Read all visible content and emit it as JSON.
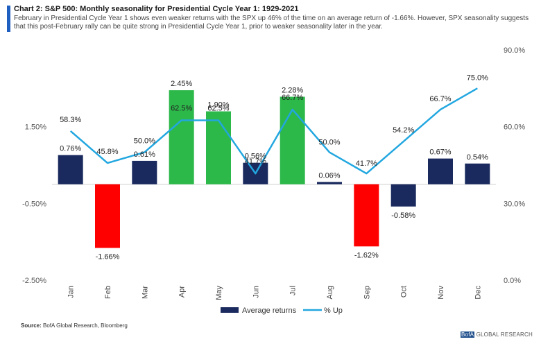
{
  "header": {
    "title": "Chart 2: S&P 500: Monthly seasonality for Presidential Cycle Year 1: 1929-2021",
    "subtitle": "February in Presidential Cycle Year 1 shows even weaker returns with the SPX up 46% of the time on an average return of -1.66%. However, SPX seasonality suggests that this post-February rally can be quite strong in Presidential Cycle Year 1, prior to weaker seasonality later in the year."
  },
  "colors": {
    "bar_default": "#1a2a5e",
    "bar_high": "#2db84a",
    "bar_low": "#ff0000",
    "line": "#22a7e0",
    "accent": "#1f5fbf"
  },
  "chart_data": {
    "type": "bar",
    "categories": [
      "Jan",
      "Feb",
      "Mar",
      "Apr",
      "May",
      "Jun",
      "Jul",
      "Aug",
      "Sep",
      "Oct",
      "Nov",
      "Dec"
    ],
    "series": [
      {
        "name": "Average returns",
        "axis": "left",
        "values": [
          0.76,
          -1.66,
          0.61,
          2.45,
          1.9,
          0.56,
          2.28,
          0.06,
          -1.62,
          -0.58,
          0.67,
          0.54
        ],
        "labels": [
          "0.76%",
          "-1.66%",
          "0.61%",
          "2.45%",
          "1.90%",
          "0.56%",
          "2.28%",
          "0.06%",
          "-1.62%",
          "-0.58%",
          "0.67%",
          "0.54%"
        ],
        "colors": [
          "#1a2a5e",
          "#ff0000",
          "#1a2a5e",
          "#2db84a",
          "#2db84a",
          "#1a2a5e",
          "#2db84a",
          "#1a2a5e",
          "#ff0000",
          "#1a2a5e",
          "#1a2a5e",
          "#1a2a5e"
        ]
      },
      {
        "name": "% Up",
        "axis": "right",
        "type": "line",
        "values": [
          58.3,
          45.8,
          50.0,
          62.5,
          62.5,
          41.7,
          66.7,
          50.0,
          41.7,
          54.2,
          66.7,
          75.0
        ],
        "labels": [
          "58.3%",
          "45.8%",
          "50.0%",
          "62.5%",
          "62.5%",
          "41.7%",
          "66.7%",
          "50.0%",
          "41.7%",
          "54.2%",
          "66.7%",
          "75.0%"
        ]
      }
    ],
    "left_ticks": [
      "1.50%",
      "-0.50%",
      "-2.50%"
    ],
    "left_tick_values": [
      1.5,
      -0.5,
      -2.5
    ],
    "right_ticks": [
      "90.0%",
      "60.0%",
      "30.0%",
      "0.0%"
    ],
    "right_tick_values": [
      90,
      60,
      30,
      0
    ],
    "ylim_left": [
      -2.5,
      3.5
    ],
    "ylim_right": [
      0,
      90
    ],
    "legend": [
      "Average returns",
      "% Up"
    ],
    "grid": false
  },
  "footer": {
    "source_label": "Source:",
    "source_text": " BofA Global Research, Bloomberg",
    "brand_mark": "BofA",
    "brand_text": " GLOBAL RESEARCH"
  }
}
